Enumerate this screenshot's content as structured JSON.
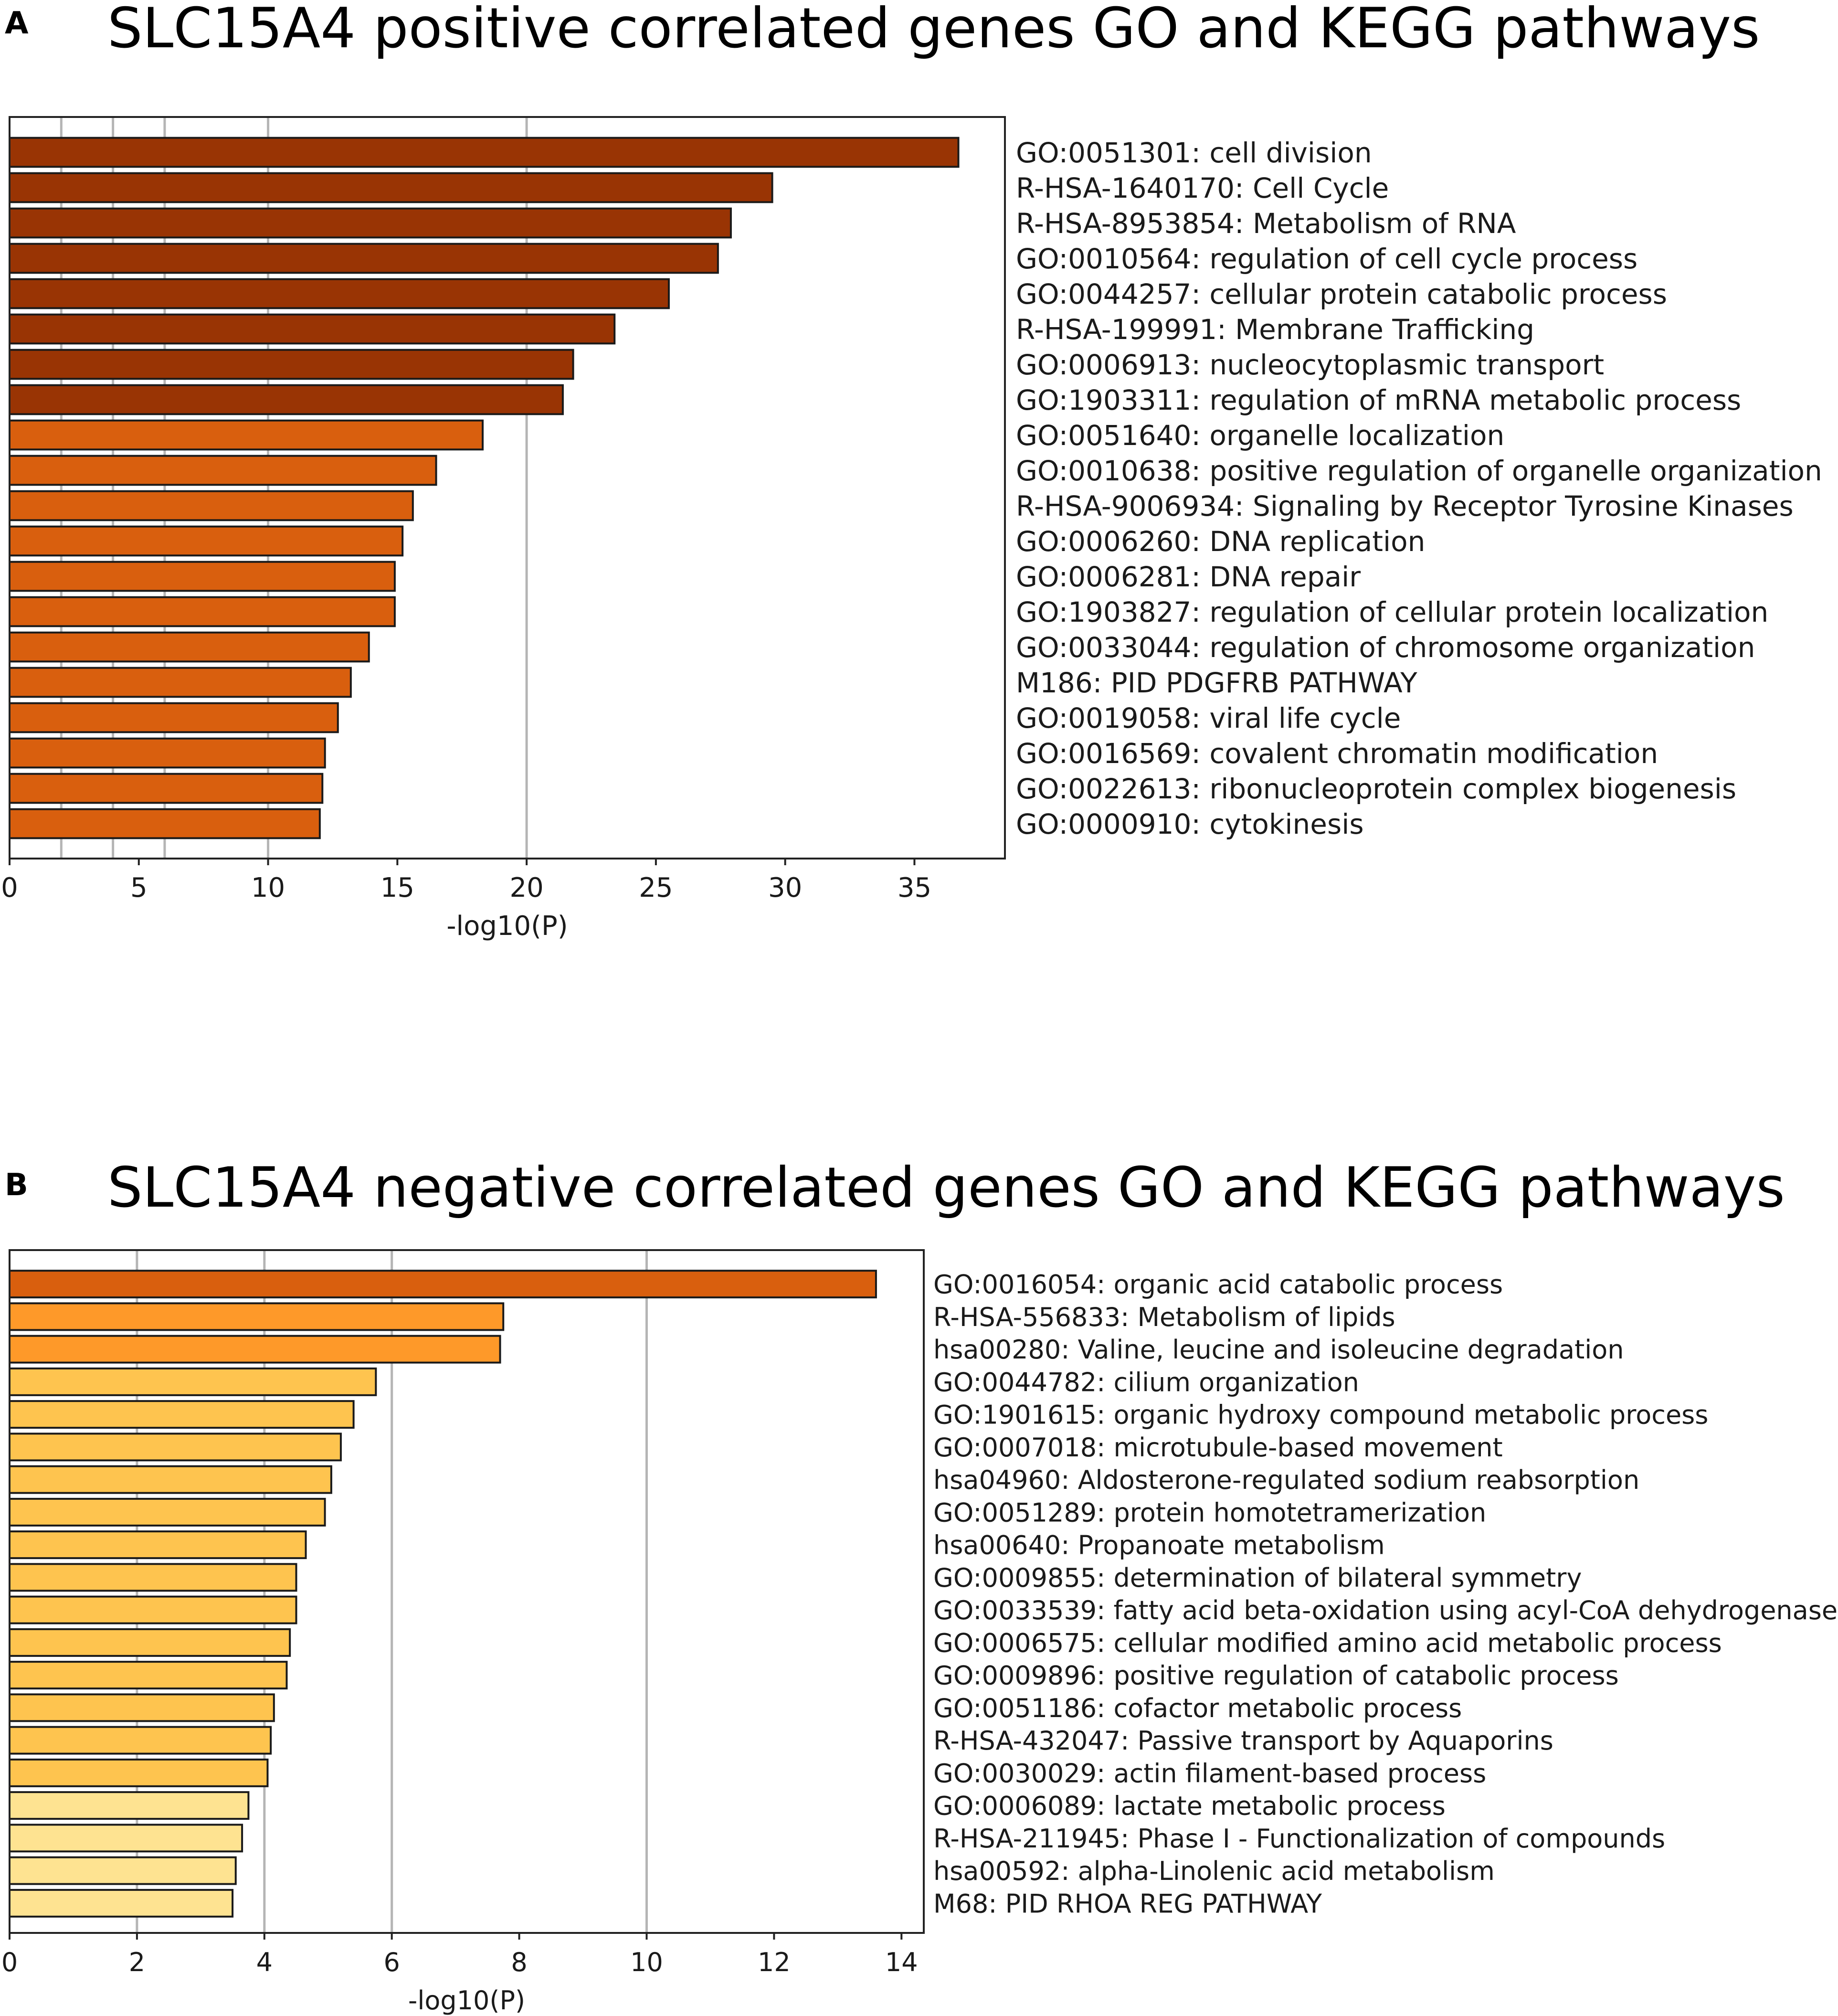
{
  "chart_data": [
    {
      "type": "bar",
      "orientation": "horizontal",
      "panel": "A",
      "title": "SLC15A4 positive correlated genes GO and KEGG pathways",
      "xlabel": "-log10(P)",
      "ylabel": "",
      "xlim": [
        0,
        38.5
      ],
      "xticks": [
        0,
        5,
        10,
        15,
        20,
        25,
        30,
        35
      ],
      "gridlines": [
        2,
        4,
        6,
        10,
        20
      ],
      "categories": [
        "GO:0051301: cell division",
        "R-HSA-1640170: Cell Cycle",
        "R-HSA-8953854: Metabolism of RNA",
        "GO:0010564: regulation of cell cycle process",
        "GO:0044257: cellular protein catabolic process",
        "R-HSA-199991: Membrane Trafficking",
        "GO:0006913: nucleocytoplasmic transport",
        "GO:1903311: regulation of mRNA metabolic process",
        "GO:0051640: organelle localization",
        "GO:0010638: positive regulation of organelle organization",
        "R-HSA-9006934: Signaling by Receptor Tyrosine Kinases",
        "GO:0006260: DNA replication",
        "GO:0006281: DNA repair",
        "GO:1903827: regulation of cellular protein localization",
        "GO:0033044: regulation of chromosome organization",
        "M186: PID PDGFRB PATHWAY",
        "GO:0019058: viral life cycle",
        "GO:0016569: covalent chromatin modification",
        "GO:0022613: ribonucleoprotein complex biogenesis",
        "GO:0000910: cytokinesis"
      ],
      "values": [
        36.7,
        29.5,
        27.9,
        27.4,
        25.5,
        23.4,
        21.8,
        21.4,
        18.3,
        16.5,
        15.6,
        15.2,
        14.9,
        14.9,
        13.9,
        13.2,
        12.7,
        12.2,
        12.1,
        12.0
      ],
      "colors": [
        "#993404",
        "#993404",
        "#993404",
        "#993404",
        "#993404",
        "#993404",
        "#993404",
        "#993404",
        "#d95f0e",
        "#d95f0e",
        "#d95f0e",
        "#d95f0e",
        "#d95f0e",
        "#d95f0e",
        "#d95f0e",
        "#d95f0e",
        "#d95f0e",
        "#d95f0e",
        "#d95f0e",
        "#d95f0e"
      ]
    },
    {
      "type": "bar",
      "orientation": "horizontal",
      "panel": "B",
      "title": "SLC15A4 negative correlated genes GO and KEGG pathways",
      "xlabel": "-log10(P)",
      "ylabel": "",
      "xlim": [
        0,
        14.35
      ],
      "xticks": [
        0,
        2,
        4,
        6,
        8,
        10,
        12,
        14
      ],
      "gridlines": [
        2,
        4,
        6,
        10
      ],
      "categories": [
        "GO:0016054: organic acid catabolic process",
        "R-HSA-556833: Metabolism of lipids",
        "hsa00280: Valine, leucine and isoleucine degradation",
        "GO:0044782: cilium organization",
        "GO:1901615: organic hydroxy compound metabolic process",
        "GO:0007018: microtubule-based movement",
        "hsa04960: Aldosterone-regulated sodium reabsorption",
        "GO:0051289: protein homotetramerization",
        "hsa00640: Propanoate metabolism",
        "GO:0009855: determination of bilateral symmetry",
        "GO:0033539: fatty acid beta-oxidation using acyl-CoA dehydrogenase",
        "GO:0006575: cellular modified amino acid metabolic process",
        "GO:0009896: positive regulation of catabolic process",
        "GO:0051186: cofactor metabolic process",
        "R-HSA-432047: Passive transport by Aquaporins",
        "GO:0030029: actin filament-based process",
        "GO:0006089: lactate metabolic process",
        "R-HSA-211945: Phase I - Functionalization of compounds",
        "hsa00592: alpha-Linolenic acid metabolism",
        "M68: PID RHOA REG PATHWAY"
      ],
      "values": [
        13.6,
        7.75,
        7.7,
        5.75,
        5.4,
        5.2,
        5.05,
        4.95,
        4.65,
        4.5,
        4.5,
        4.4,
        4.35,
        4.15,
        4.1,
        4.05,
        3.75,
        3.65,
        3.55,
        3.5
      ],
      "colors": [
        "#d95f0e",
        "#fe9929",
        "#fe9929",
        "#fec44f",
        "#fec44f",
        "#fec44f",
        "#fec44f",
        "#fec44f",
        "#fec44f",
        "#fec44f",
        "#fec44f",
        "#fec44f",
        "#fec44f",
        "#fec44f",
        "#fec44f",
        "#fec44f",
        "#fee391",
        "#fee391",
        "#fee391",
        "#fee391"
      ]
    }
  ]
}
